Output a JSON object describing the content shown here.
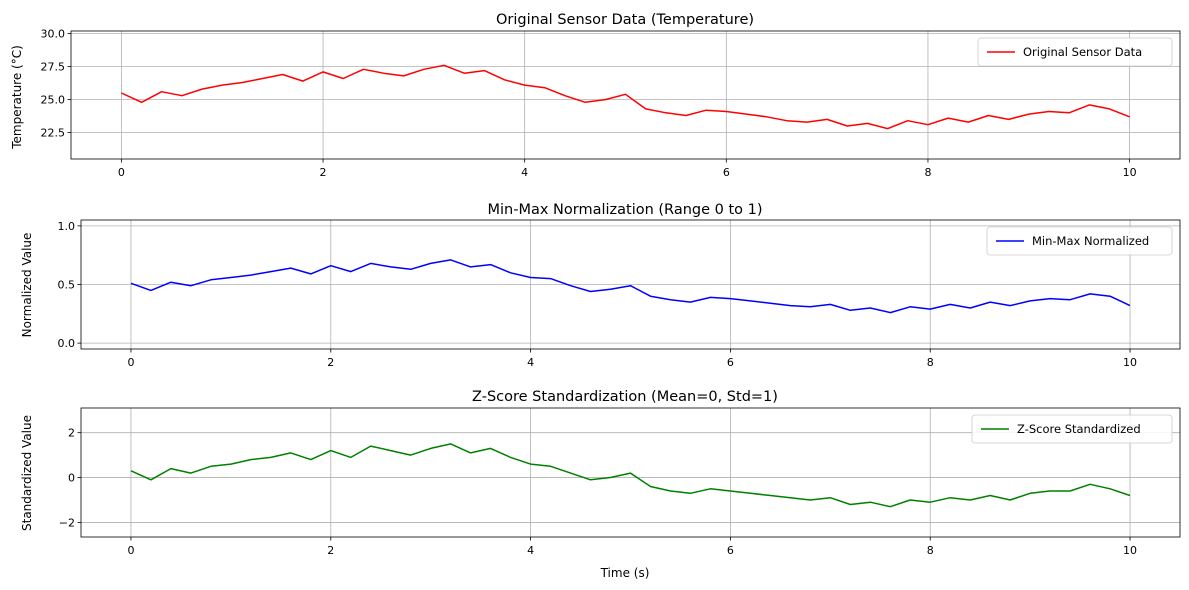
{
  "chart_data": [
    {
      "type": "line",
      "title": "Original Sensor Data (Temperature)",
      "xlabel": "",
      "ylabel": "Temperature (°C)",
      "xlim": [
        -0.5,
        10.5
      ],
      "ylim": [
        20.5,
        30.2
      ],
      "xticks": [
        0,
        2,
        4,
        6,
        8,
        10
      ],
      "xtick_labels": [
        "0",
        "2",
        "4",
        "6",
        "8",
        "10"
      ],
      "yticks": [
        22.5,
        25.0,
        27.5,
        30.0
      ],
      "ytick_labels": [
        "22.5",
        "25.0",
        "27.5",
        "30.0"
      ],
      "grid": true,
      "legend_position": "top-right",
      "series": [
        {
          "name": "Original Sensor Data",
          "color": "#ff0000",
          "x": [
            0,
            0.2,
            0.4,
            0.6,
            0.8,
            1.0,
            1.2,
            1.4,
            1.6,
            1.8,
            2.0,
            2.2,
            2.4,
            2.6,
            2.8,
            3.0,
            3.2,
            3.4,
            3.6,
            3.8,
            4.0,
            4.2,
            4.4,
            4.6,
            4.8,
            5.0,
            5.2,
            5.4,
            5.6,
            5.8,
            6.0,
            6.2,
            6.4,
            6.6,
            6.8,
            7.0,
            7.2,
            7.4,
            7.6,
            7.8,
            8.0,
            8.2,
            8.4,
            8.6,
            8.8,
            9.0,
            9.2,
            9.4,
            9.6,
            9.8,
            10.0
          ],
          "values": [
            25.5,
            24.8,
            25.6,
            25.3,
            25.8,
            26.1,
            26.3,
            26.6,
            26.9,
            26.4,
            27.1,
            26.6,
            27.3,
            27.0,
            26.8,
            27.3,
            27.6,
            27.0,
            27.2,
            26.5,
            26.1,
            25.9,
            25.3,
            24.8,
            25.0,
            25.4,
            24.3,
            24.0,
            23.8,
            24.2,
            24.1,
            23.9,
            23.7,
            23.4,
            23.3,
            23.5,
            23.0,
            23.2,
            22.8,
            23.4,
            23.1,
            23.6,
            23.3,
            23.8,
            23.5,
            23.9,
            24.1,
            24.0,
            24.6,
            24.3,
            23.7
          ]
        }
      ]
    },
    {
      "type": "line",
      "title": "Min-Max Normalization (Range 0 to 1)",
      "xlabel": "",
      "ylabel": "Normalized Value",
      "xlim": [
        -0.5,
        10.5
      ],
      "ylim": [
        -0.05,
        1.05
      ],
      "xticks": [
        0,
        2,
        4,
        6,
        8,
        10
      ],
      "xtick_labels": [
        "0",
        "2",
        "4",
        "6",
        "8",
        "10"
      ],
      "yticks": [
        0.0,
        0.5,
        1.0
      ],
      "ytick_labels": [
        "0.0",
        "0.5",
        "1.0"
      ],
      "grid": true,
      "legend_position": "top-right",
      "series": [
        {
          "name": "Min-Max Normalized",
          "color": "#0000ff",
          "x": [
            0,
            0.2,
            0.4,
            0.6,
            0.8,
            1.0,
            1.2,
            1.4,
            1.6,
            1.8,
            2.0,
            2.2,
            2.4,
            2.6,
            2.8,
            3.0,
            3.2,
            3.4,
            3.6,
            3.8,
            4.0,
            4.2,
            4.4,
            4.6,
            4.8,
            5.0,
            5.2,
            5.4,
            5.6,
            5.8,
            6.0,
            6.2,
            6.4,
            6.6,
            6.8,
            7.0,
            7.2,
            7.4,
            7.6,
            7.8,
            8.0,
            8.2,
            8.4,
            8.6,
            8.8,
            9.0,
            9.2,
            9.4,
            9.6,
            9.8,
            10.0
          ],
          "values": [
            0.51,
            0.45,
            0.52,
            0.49,
            0.54,
            0.56,
            0.58,
            0.61,
            0.64,
            0.59,
            0.66,
            0.61,
            0.68,
            0.65,
            0.63,
            0.68,
            0.71,
            0.65,
            0.67,
            0.6,
            0.56,
            0.55,
            0.49,
            0.44,
            0.46,
            0.49,
            0.4,
            0.37,
            0.35,
            0.39,
            0.38,
            0.36,
            0.34,
            0.32,
            0.31,
            0.33,
            0.28,
            0.3,
            0.26,
            0.31,
            0.29,
            0.33,
            0.3,
            0.35,
            0.32,
            0.36,
            0.38,
            0.37,
            0.42,
            0.4,
            0.32
          ]
        }
      ]
    },
    {
      "type": "line",
      "title": "Z-Score Standardization (Mean=0, Std=1)",
      "xlabel": "Time (s)",
      "ylabel": "Standardized Value",
      "xlim": [
        -0.5,
        10.5
      ],
      "ylim": [
        -2.65,
        3.1
      ],
      "xticks": [
        0,
        2,
        4,
        6,
        8,
        10
      ],
      "xtick_labels": [
        "0",
        "2",
        "4",
        "6",
        "8",
        "10"
      ],
      "yticks": [
        -2,
        0,
        2
      ],
      "ytick_labels": [
        "−2",
        "0",
        "2"
      ],
      "grid": true,
      "legend_position": "top-right",
      "series": [
        {
          "name": "Z-Score Standardized",
          "color": "#008000",
          "x": [
            0,
            0.2,
            0.4,
            0.6,
            0.8,
            1.0,
            1.2,
            1.4,
            1.6,
            1.8,
            2.0,
            2.2,
            2.4,
            2.6,
            2.8,
            3.0,
            3.2,
            3.4,
            3.6,
            3.8,
            4.0,
            4.2,
            4.4,
            4.6,
            4.8,
            5.0,
            5.2,
            5.4,
            5.6,
            5.8,
            6.0,
            6.2,
            6.4,
            6.6,
            6.8,
            7.0,
            7.2,
            7.4,
            7.6,
            7.8,
            8.0,
            8.2,
            8.4,
            8.6,
            8.8,
            9.0,
            9.2,
            9.4,
            9.6,
            9.8,
            10.0
          ],
          "values": [
            0.3,
            -0.1,
            0.4,
            0.2,
            0.5,
            0.6,
            0.8,
            0.9,
            1.1,
            0.8,
            1.2,
            0.9,
            1.4,
            1.2,
            1.0,
            1.3,
            1.5,
            1.1,
            1.3,
            0.9,
            0.6,
            0.5,
            0.2,
            -0.1,
            0.0,
            0.2,
            -0.4,
            -0.6,
            -0.7,
            -0.5,
            -0.6,
            -0.7,
            -0.8,
            -0.9,
            -1.0,
            -0.9,
            -1.2,
            -1.1,
            -1.3,
            -1.0,
            -1.1,
            -0.9,
            -1.0,
            -0.8,
            -1.0,
            -0.7,
            -0.6,
            -0.6,
            -0.3,
            -0.5,
            -0.8
          ]
        }
      ]
    }
  ]
}
